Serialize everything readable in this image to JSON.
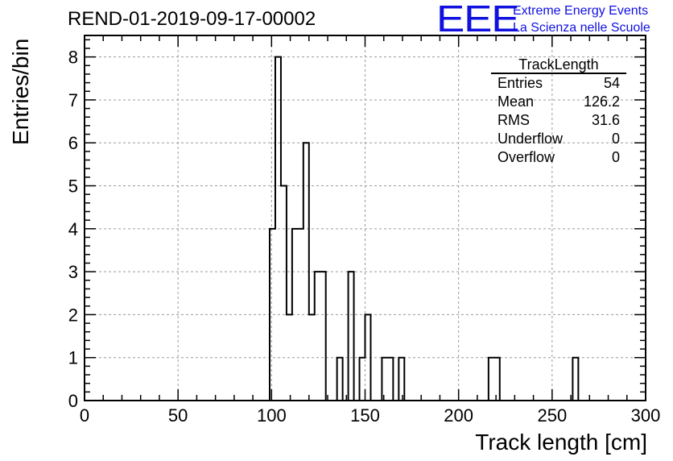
{
  "run_title": "REND-01-2019-09-17-00002",
  "logo": {
    "letters": "EEE",
    "line1": "Extreme Energy Events",
    "line2": "La Scienza nelle Scuole",
    "color": "#1010e0"
  },
  "stats": {
    "title": "TrackLength",
    "rows": [
      {
        "label": "Entries",
        "value": "54"
      },
      {
        "label": "Mean",
        "value": "126.2"
      },
      {
        "label": "RMS",
        "value": "31.6"
      },
      {
        "label": "Underflow",
        "value": "0"
      },
      {
        "label": "Overflow",
        "value": "0"
      }
    ]
  },
  "chart_data": {
    "type": "bar",
    "histogram": true,
    "title": "REND-01-2019-09-17-00002",
    "xlabel": "Track length [cm]",
    "ylabel": "Entries/bin",
    "xlim": [
      0,
      300
    ],
    "ylim": [
      0,
      8.5
    ],
    "xticks": [
      0,
      50,
      100,
      150,
      200,
      250,
      300
    ],
    "yticks": [
      0,
      1,
      2,
      3,
      4,
      5,
      6,
      7,
      8
    ],
    "grid": true,
    "line_color": "#000000",
    "bin_width": 3,
    "bins": [
      {
        "x0": 99,
        "x1": 102,
        "count": 4
      },
      {
        "x0": 102,
        "x1": 105,
        "count": 8
      },
      {
        "x0": 105,
        "x1": 108,
        "count": 5
      },
      {
        "x0": 108,
        "x1": 111,
        "count": 2
      },
      {
        "x0": 111,
        "x1": 114,
        "count": 4
      },
      {
        "x0": 114,
        "x1": 117,
        "count": 4
      },
      {
        "x0": 117,
        "x1": 120,
        "count": 6
      },
      {
        "x0": 120,
        "x1": 123,
        "count": 2
      },
      {
        "x0": 123,
        "x1": 126,
        "count": 3
      },
      {
        "x0": 126,
        "x1": 129,
        "count": 3
      },
      {
        "x0": 135,
        "x1": 138,
        "count": 1
      },
      {
        "x0": 141,
        "x1": 144,
        "count": 3
      },
      {
        "x0": 147,
        "x1": 150,
        "count": 1
      },
      {
        "x0": 150,
        "x1": 153,
        "count": 2
      },
      {
        "x0": 159,
        "x1": 162,
        "count": 1
      },
      {
        "x0": 162,
        "x1": 165,
        "count": 1
      },
      {
        "x0": 168,
        "x1": 171,
        "count": 1
      },
      {
        "x0": 216,
        "x1": 219,
        "count": 1
      },
      {
        "x0": 219,
        "x1": 222,
        "count": 1
      },
      {
        "x0": 261,
        "x1": 264,
        "count": 1
      }
    ]
  }
}
